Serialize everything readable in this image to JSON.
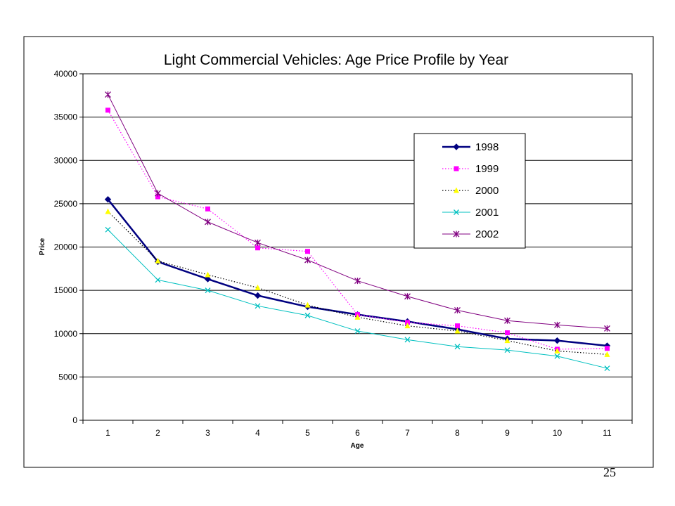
{
  "page_number": "25",
  "chart_data": {
    "type": "line",
    "title": "Light Commercial Vehicles: Age Price Profile by Year",
    "xlabel": "Age",
    "ylabel": "Price",
    "x": [
      1,
      2,
      3,
      4,
      5,
      6,
      7,
      8,
      9,
      10,
      11
    ],
    "ylim": [
      0,
      40000
    ],
    "yticks": [
      0,
      5000,
      10000,
      15000,
      20000,
      25000,
      30000,
      35000,
      40000
    ],
    "grid": "horizontal",
    "legend_position": "right",
    "series": [
      {
        "name": "1998",
        "color": "#000080",
        "line": "solid-thick",
        "marker": "diamond",
        "values": [
          25500,
          18300,
          16300,
          14400,
          13100,
          12200,
          11400,
          10500,
          9400,
          9200,
          8600
        ]
      },
      {
        "name": "1999",
        "color": "#ff00ff",
        "line": "dotted",
        "marker": "square",
        "values": [
          35800,
          25800,
          24400,
          19900,
          19500,
          12200,
          11300,
          10900,
          10100,
          8200,
          8300
        ]
      },
      {
        "name": "2000",
        "color": "#ffff00",
        "line": "dotted",
        "marker": "triangle",
        "values": [
          24100,
          18400,
          16800,
          15300,
          13300,
          11900,
          10900,
          10300,
          9200,
          8000,
          7600
        ]
      },
      {
        "name": "2001",
        "color": "#00c0c0",
        "line": "solid-thin",
        "marker": "x",
        "values": [
          22000,
          16200,
          15000,
          13200,
          12100,
          10300,
          9300,
          8500,
          8100,
          7400,
          6000
        ]
      },
      {
        "name": "2002",
        "color": "#800080",
        "line": "solid-thin",
        "marker": "star",
        "values": [
          37600,
          26200,
          22900,
          20500,
          18500,
          16100,
          14300,
          12700,
          11500,
          11000,
          10600
        ]
      }
    ]
  }
}
